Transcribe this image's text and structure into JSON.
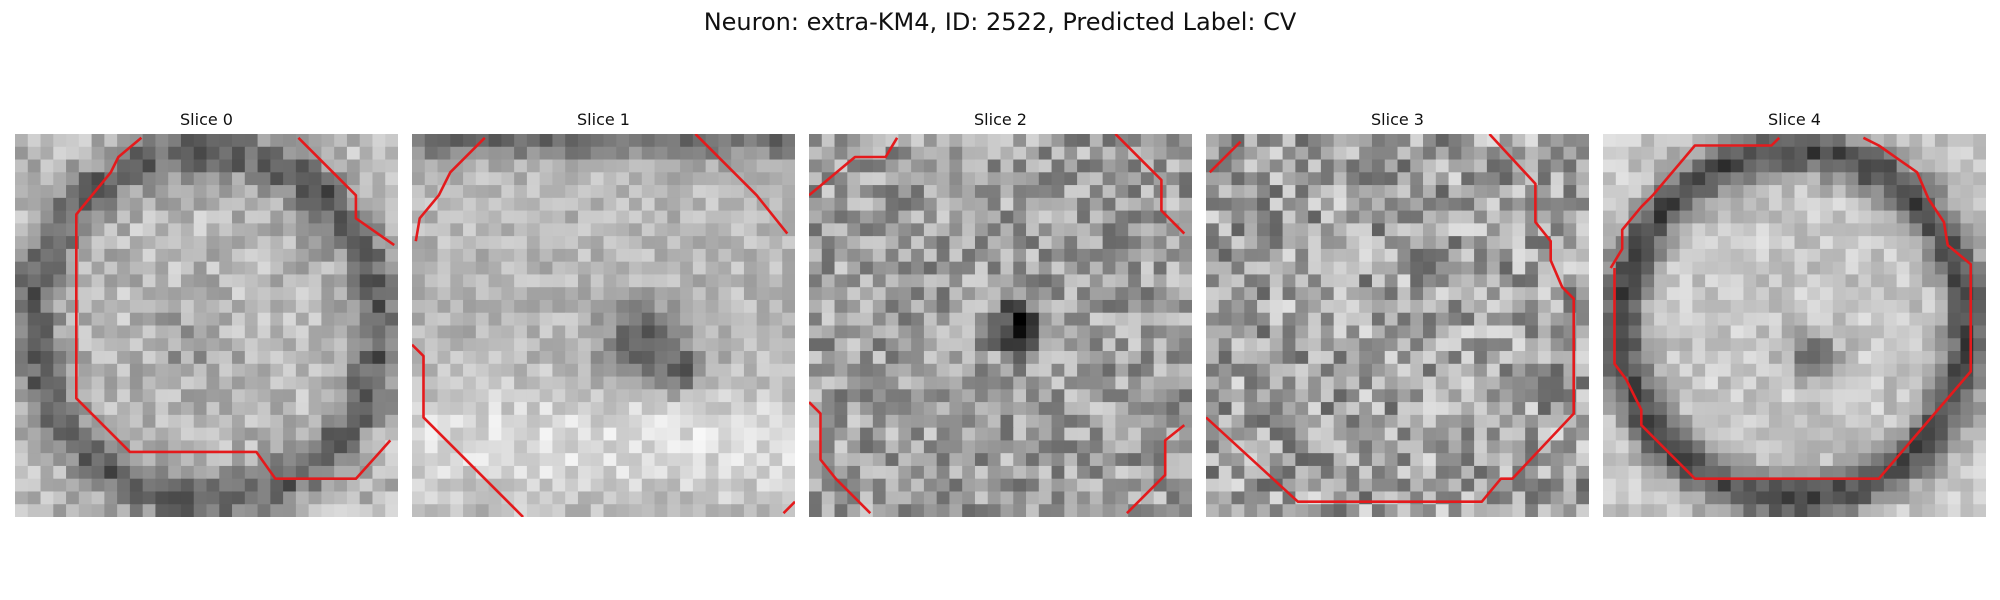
{
  "figure": {
    "title": "Neuron: extra-KM4, ID: 2522, Predicted Label: CV"
  },
  "slices": [
    {
      "title": "Slice 0",
      "pattern": "ring-dark-corners"
    },
    {
      "title": "Slice 1",
      "pattern": "bright-band"
    },
    {
      "title": "Slice 2",
      "pattern": "noisy-dark-center"
    },
    {
      "title": "Slice 3",
      "pattern": "noisy-uniform"
    },
    {
      "title": "Slice 4",
      "pattern": "bright-disc-dark-ring"
    }
  ],
  "contour_color": "#e41a1c"
}
